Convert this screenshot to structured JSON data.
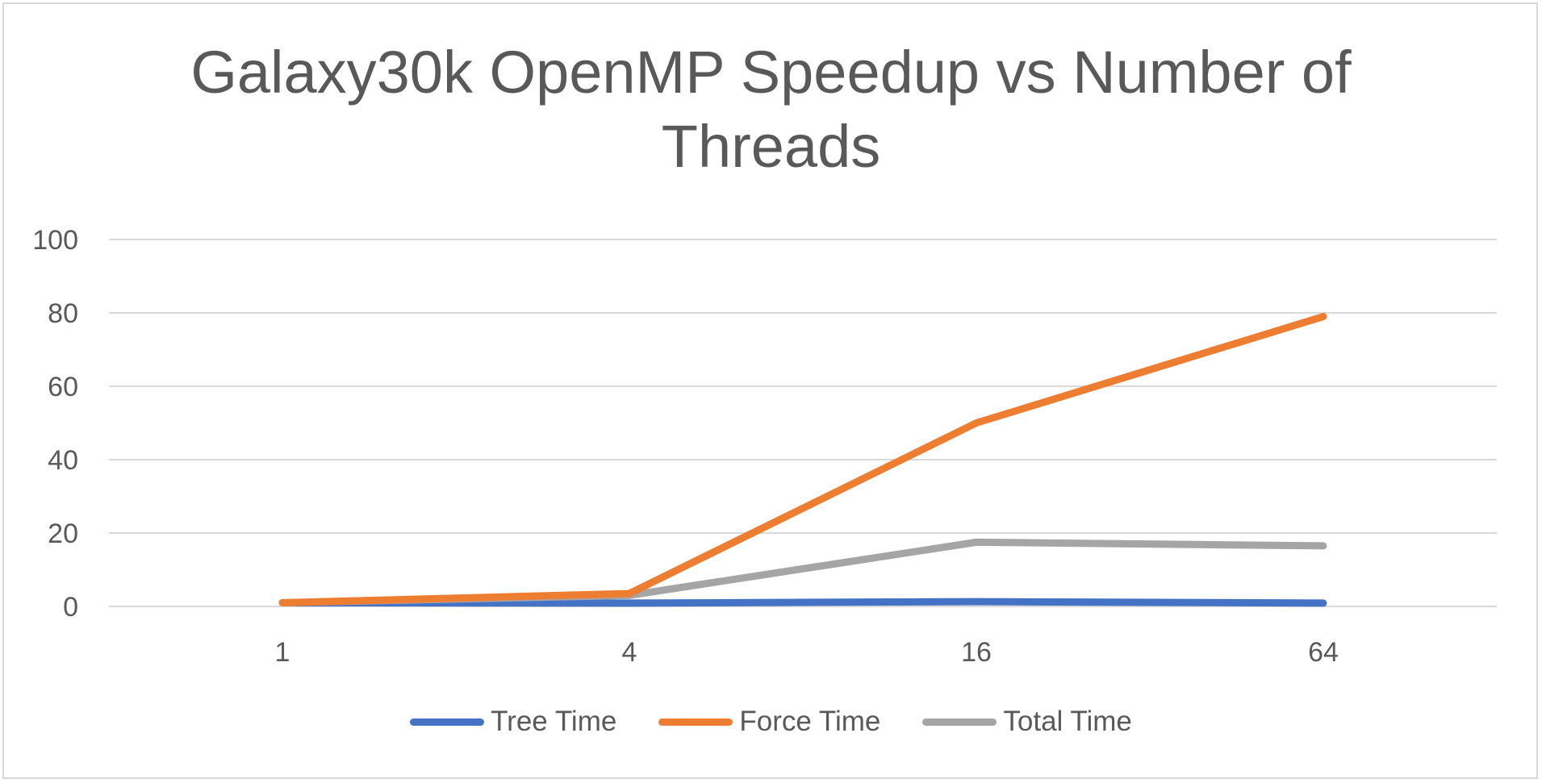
{
  "chart_data": {
    "type": "line",
    "title": "Galaxy30k OpenMP Speedup vs Number of Threads",
    "title_lines": [
      "Galaxy30k OpenMP Speedup vs Number of",
      "Threads"
    ],
    "categories": [
      "1",
      "4",
      "16",
      "64"
    ],
    "series": [
      {
        "name": "Tree Time",
        "values": [
          1,
          0.9,
          1.3,
          0.9
        ],
        "color": "#4472c4"
      },
      {
        "name": "Force Time",
        "values": [
          1,
          3.5,
          50,
          79
        ],
        "color": "#ed7d31"
      },
      {
        "name": "Total Time",
        "values": [
          1,
          3,
          17.5,
          16.5
        ],
        "color": "#a5a5a5"
      }
    ],
    "ylim": [
      0,
      100
    ],
    "yticks": [
      0,
      20,
      40,
      60,
      80,
      100
    ],
    "grid": true,
    "legend_position": "bottom"
  }
}
